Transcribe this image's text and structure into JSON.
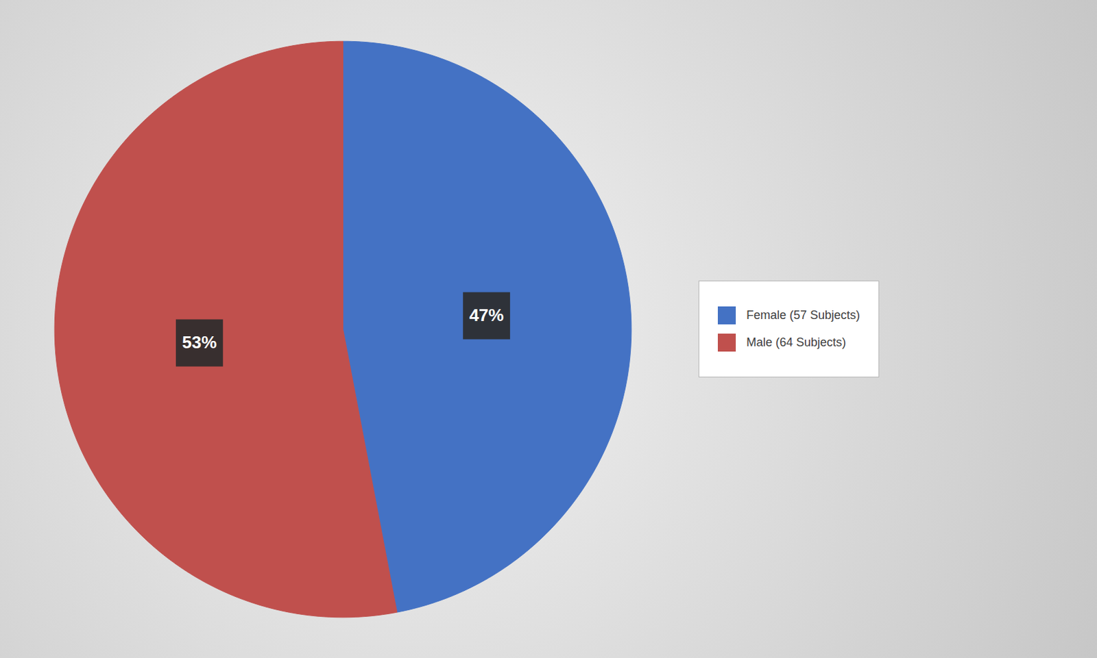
{
  "chart_data": {
    "type": "pie",
    "categories": [
      "Female (57 Subjects)",
      "Male (64 Subjects)"
    ],
    "values": [
      47,
      53
    ],
    "value_labels": [
      "47%",
      "53%"
    ],
    "colors": [
      "#4472C4",
      "#C0504D"
    ],
    "data_labels": true,
    "legend": "right"
  }
}
